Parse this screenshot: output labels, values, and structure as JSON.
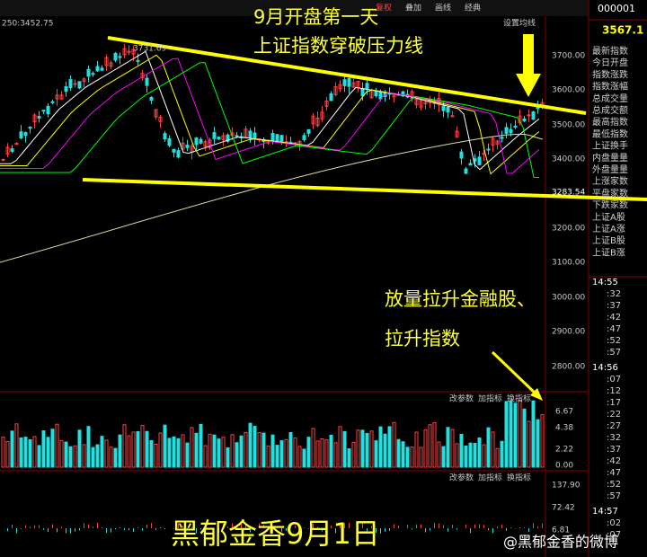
{
  "toolbar": {
    "items": [
      "复权",
      "叠加",
      "画线",
      "经典"
    ],
    "code": "000001",
    "price": "3567.1"
  },
  "chart": {
    "ma_label": "250:3452.75",
    "setting": "设置均线",
    "high_label": "3731.69",
    "low_label": "3283.54",
    "price_axis": [
      "3700.00",
      "3600.00",
      "3500.00",
      "3400.00",
      "3200.00",
      "3100.00",
      "3000.00",
      "2900.00",
      "2800.00"
    ],
    "volume_tools": [
      "改参数",
      "加指标",
      "换指标"
    ],
    "volume_axis": [
      "6.67",
      "4.38",
      "2.22",
      "0.00"
    ],
    "indicator_tools": [
      "改参数",
      "加指标",
      "换指标"
    ],
    "indicator_axis": [
      "137.90",
      "72.42",
      "6.81"
    ]
  },
  "side_panel": {
    "fields": [
      "最新指数",
      "今日开盘",
      "指数涨跌",
      "指数涨幅",
      "总成交量",
      "总成交额",
      "最高指数",
      "最低指数",
      "上证换手",
      "内盘量量",
      "外盘量量",
      "上涨家数",
      "平盘家数",
      "下跌家数",
      "上证A股",
      "上证A涨",
      "上证B股",
      "上证B涨"
    ],
    "ticks": [
      {
        "time": "14:55",
        "rows": [
          ":32",
          ":37",
          ":42",
          ":47",
          ":52",
          ":57"
        ]
      },
      {
        "time": "14:56",
        "rows": [
          ":07",
          ":12",
          ":17",
          ":22",
          ":27",
          ":32",
          ":37",
          ":42",
          ":47",
          ":52",
          ":57"
        ]
      },
      {
        "time": "14:57",
        "rows": [
          ":02",
          ":07"
        ]
      }
    ]
  },
  "annotations": {
    "line1": "9月开盘第一天",
    "line2": "上证指数穿破压力线",
    "note1": "放量拉升金融股、",
    "note2": "拉升指数",
    "footer": "黑郁金香9月1日",
    "watermark": "@黑郁金香的微博"
  }
}
